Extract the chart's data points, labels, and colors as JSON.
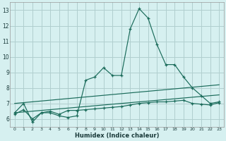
{
  "xlabel": "Humidex (Indice chaleur)",
  "bg_color": "#d6f0f0",
  "grid_color": "#b0cece",
  "line_color": "#1a6b5a",
  "xlim": [
    -0.5,
    23.5
  ],
  "ylim": [
    5.5,
    13.5
  ],
  "xticks": [
    0,
    1,
    2,
    3,
    4,
    5,
    6,
    7,
    8,
    9,
    10,
    11,
    12,
    13,
    14,
    15,
    16,
    17,
    18,
    19,
    20,
    21,
    22,
    23
  ],
  "yticks": [
    6,
    7,
    8,
    9,
    10,
    11,
    12,
    13
  ],
  "line1_x": [
    0,
    1,
    2,
    3,
    4,
    5,
    6,
    7,
    8,
    9,
    10,
    11,
    12,
    13,
    14,
    15,
    16,
    17,
    18,
    19,
    20,
    21,
    22,
    23
  ],
  "line1_y": [
    6.4,
    7.0,
    5.8,
    6.4,
    6.4,
    6.2,
    6.1,
    6.2,
    8.5,
    8.7,
    9.3,
    8.8,
    8.8,
    11.8,
    13.1,
    12.5,
    10.8,
    9.5,
    9.5,
    8.7,
    8.0,
    7.5,
    7.0,
    7.1
  ],
  "line2_x": [
    0,
    1,
    2,
    3,
    4,
    5,
    6,
    7,
    8,
    9,
    10,
    11,
    12,
    13,
    14,
    15,
    16,
    17,
    18,
    19,
    20,
    21,
    22,
    23
  ],
  "line2_y": [
    6.3,
    6.6,
    6.0,
    6.4,
    6.5,
    6.3,
    6.55,
    6.55,
    6.6,
    6.65,
    6.7,
    6.75,
    6.8,
    6.9,
    7.0,
    7.05,
    7.1,
    7.1,
    7.15,
    7.2,
    7.0,
    6.95,
    6.9,
    7.05
  ],
  "line3_x": [
    0,
    23
  ],
  "line3_y": [
    6.4,
    7.55
  ],
  "line4_x": [
    0,
    23
  ],
  "line4_y": [
    7.0,
    8.2
  ]
}
